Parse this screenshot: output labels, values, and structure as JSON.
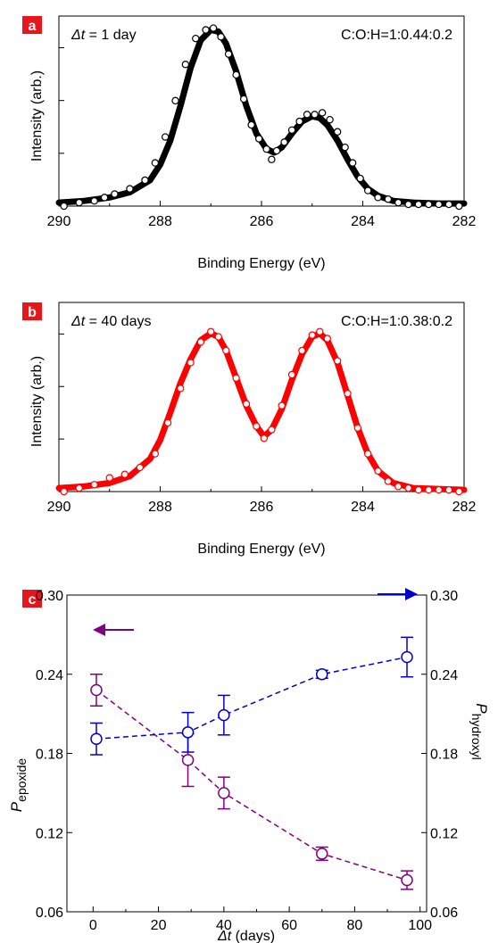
{
  "chart_data": [
    {
      "type": "scatter",
      "panel_label": "a",
      "annotation_prefix": "Δt",
      "annotation_value": " = 1 day",
      "ratio": "C:O:H=1:0.44:0.2",
      "xlabel": "Binding Energy (eV)",
      "ylabel": "Intensity (arb.)",
      "xlim": [
        290,
        282
      ],
      "x_ticks": [
        290,
        288,
        286,
        284,
        282
      ],
      "ylim": [
        0,
        1.1
      ],
      "color": "#000000",
      "series": [
        {
          "kind": "fit-line",
          "x": [
            290,
            289.5,
            289,
            288.6,
            288.2,
            288,
            287.8,
            287.6,
            287.4,
            287.2,
            287.0,
            286.85,
            286.7,
            286.5,
            286.3,
            286.1,
            285.9,
            285.75,
            285.6,
            285.4,
            285.2,
            285.0,
            284.85,
            284.7,
            284.5,
            284.3,
            284.1,
            283.9,
            283.7,
            283.4,
            283.0,
            282.5,
            282
          ],
          "y": [
            0.02,
            0.03,
            0.05,
            0.08,
            0.15,
            0.24,
            0.38,
            0.58,
            0.8,
            0.96,
            1.02,
            1.01,
            0.94,
            0.78,
            0.58,
            0.42,
            0.33,
            0.31,
            0.34,
            0.42,
            0.49,
            0.52,
            0.51,
            0.47,
            0.38,
            0.27,
            0.17,
            0.1,
            0.06,
            0.03,
            0.02,
            0.015,
            0.015
          ]
        },
        {
          "kind": "points",
          "x": [
            289.9,
            289.6,
            289.3,
            289.1,
            288.9,
            288.6,
            288.3,
            288.1,
            287.9,
            287.7,
            287.5,
            287.3,
            287.1,
            286.95,
            286.8,
            286.65,
            286.5,
            286.35,
            286.2,
            286.05,
            285.9,
            285.8,
            285.7,
            285.55,
            285.4,
            285.25,
            285.1,
            284.95,
            284.8,
            284.65,
            284.5,
            284.35,
            284.2,
            284.05,
            283.9,
            283.7,
            283.5,
            283.3,
            283.1,
            282.9,
            282.7,
            282.5,
            282.3,
            282.1
          ],
          "y": [
            0.0,
            0.02,
            0.03,
            0.05,
            0.07,
            0.1,
            0.15,
            0.25,
            0.4,
            0.61,
            0.82,
            0.97,
            1.02,
            1.03,
            0.98,
            0.88,
            0.76,
            0.62,
            0.47,
            0.39,
            0.33,
            0.27,
            0.32,
            0.37,
            0.44,
            0.49,
            0.53,
            0.53,
            0.54,
            0.5,
            0.43,
            0.34,
            0.25,
            0.16,
            0.09,
            0.05,
            0.04,
            0.02,
            0.01,
            0.01,
            0.01,
            0.01,
            0.01,
            0.0
          ]
        }
      ]
    },
    {
      "type": "scatter",
      "panel_label": "b",
      "annotation_prefix": "Δt",
      "annotation_value": " = 40 days",
      "ratio": "C:O:H=1:0.38:0.2",
      "xlabel": "Binding Energy (eV)",
      "ylabel": "Intensity (arb.)",
      "xlim": [
        290,
        282
      ],
      "x_ticks": [
        290,
        288,
        286,
        284,
        282
      ],
      "ylim": [
        0,
        1.1
      ],
      "color": "#ff0000",
      "series": [
        {
          "kind": "fit-line",
          "x": [
            290,
            289.5,
            289,
            288.6,
            288.2,
            288,
            287.8,
            287.6,
            287.4,
            287.2,
            287.0,
            286.85,
            286.7,
            286.5,
            286.3,
            286.1,
            285.95,
            285.8,
            285.6,
            285.4,
            285.2,
            285.0,
            284.85,
            284.7,
            284.5,
            284.3,
            284.1,
            283.9,
            283.7,
            283.4,
            283.0,
            282.5,
            282
          ],
          "y": [
            0.02,
            0.03,
            0.05,
            0.09,
            0.19,
            0.3,
            0.46,
            0.63,
            0.77,
            0.88,
            0.92,
            0.9,
            0.82,
            0.66,
            0.5,
            0.38,
            0.32,
            0.36,
            0.48,
            0.65,
            0.8,
            0.9,
            0.92,
            0.88,
            0.75,
            0.56,
            0.37,
            0.22,
            0.12,
            0.05,
            0.02,
            0.015,
            0.01
          ]
        },
        {
          "kind": "points",
          "x": [
            289.9,
            289.6,
            289.3,
            289.0,
            288.7,
            288.4,
            288.1,
            287.85,
            287.6,
            287.4,
            287.2,
            287.0,
            286.85,
            286.7,
            286.5,
            286.3,
            286.1,
            285.95,
            285.8,
            285.6,
            285.4,
            285.2,
            285.0,
            284.85,
            284.7,
            284.5,
            284.3,
            284.1,
            283.9,
            283.7,
            283.5,
            283.3,
            283.1,
            282.9,
            282.7,
            282.5,
            282.3,
            282.1
          ],
          "y": [
            0.0,
            0.02,
            0.04,
            0.08,
            0.1,
            0.14,
            0.22,
            0.4,
            0.6,
            0.75,
            0.87,
            0.93,
            0.9,
            0.82,
            0.66,
            0.51,
            0.38,
            0.31,
            0.36,
            0.5,
            0.68,
            0.82,
            0.91,
            0.93,
            0.89,
            0.76,
            0.57,
            0.37,
            0.22,
            0.12,
            0.06,
            0.03,
            0.02,
            0.01,
            0.01,
            0.01,
            0.01,
            0.0
          ]
        }
      ]
    },
    {
      "type": "line",
      "panel_label": "c",
      "xlabel_prefix": "Δt",
      "xlabel_suffix": " (days)",
      "xlim": [
        -8,
        102
      ],
      "x_ticks": [
        0,
        20,
        40,
        60,
        80,
        100
      ],
      "ylim_left": [
        0.06,
        0.3
      ],
      "ylim_right": [
        0.06,
        0.3
      ],
      "y_ticks_left": [
        "0.06",
        "0.12",
        "0.18",
        "0.24",
        "0.30"
      ],
      "y_ticks_right": [
        "0.06",
        "0.12",
        "0.18",
        "0.24",
        "0.30"
      ],
      "ylabel_left_main": "P",
      "ylabel_left_sub": "epoxide",
      "ylabel_right_main": "P",
      "ylabel_right_sub": "hydroxyl",
      "series": [
        {
          "axis": "left",
          "color": "#800080",
          "x": [
            1,
            29,
            40,
            70,
            96
          ],
          "y": [
            0.228,
            0.175,
            0.15,
            0.104,
            0.084
          ],
          "err": [
            0.012,
            0.02,
            0.012,
            0.005,
            0.007
          ]
        },
        {
          "axis": "right",
          "color": "#0000cc",
          "x": [
            1,
            29,
            40,
            70,
            96
          ],
          "y": [
            0.191,
            0.196,
            0.209,
            0.24,
            0.253
          ],
          "err": [
            0.012,
            0.015,
            0.015,
            0.003,
            0.015
          ]
        }
      ]
    }
  ]
}
